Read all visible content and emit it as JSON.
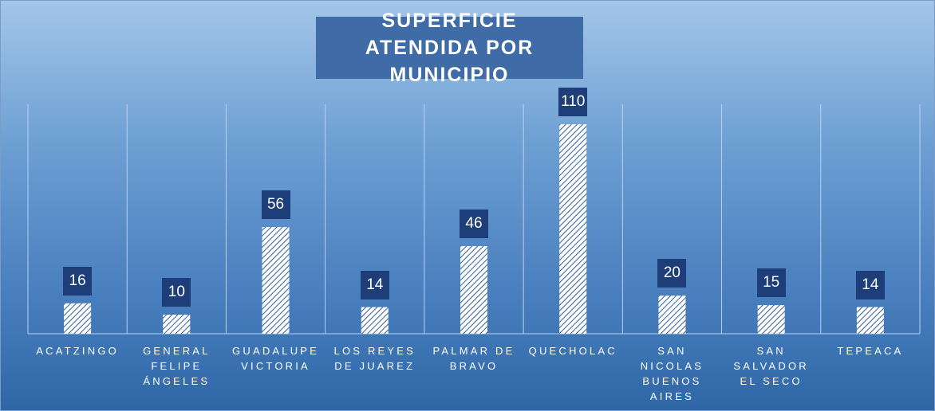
{
  "chart_data": {
    "type": "bar",
    "title": "SUPERFICIE ATENDIDA POR MUNICIPIO",
    "categories": [
      "ACATZINGO",
      "GENERAL FELIPE ÁNGELES",
      "GUADALUPE VICTORIA",
      "LOS REYES DE JUAREZ",
      "PALMAR DE BRAVO",
      "QUECHOLAC",
      "SAN NICOLAS BUENOS AIRES",
      "SAN SALVADOR EL SECO",
      "TEPEACA"
    ],
    "values": [
      16,
      10,
      56,
      14,
      46,
      110,
      20,
      15,
      14
    ],
    "color": "#2f5f9e"
  }
}
